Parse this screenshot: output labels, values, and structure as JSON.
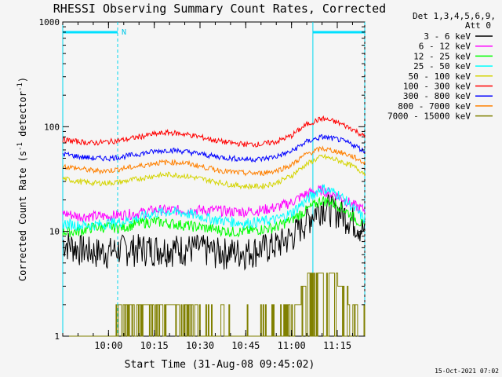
{
  "chart_data": {
    "type": "line",
    "title": "RHESSI Observing Summary Count Rates, Corrected",
    "xlabel": "Start Time (31-Aug-08 09:45:02)",
    "ylabel_main": "Corrected Count Rate (s",
    "ylabel_sup1": "-1",
    "ylabel_mid": " detector",
    "ylabel_sup2": "-1",
    "ylabel_end": ")",
    "x_unit": "minutes after 09:45:02",
    "x_range": [
      0,
      99
    ],
    "y_scale": "log",
    "ylim": [
      1,
      1000
    ],
    "x_ticks": [
      {
        "label": "10:00",
        "value": 15
      },
      {
        "label": "10:15",
        "value": 30
      },
      {
        "label": "10:30",
        "value": 45
      },
      {
        "label": "10:45",
        "value": 60
      },
      {
        "label": "11:00",
        "value": 75
      },
      {
        "label": "11:15",
        "value": 90
      }
    ],
    "y_ticks": [
      {
        "label": "1",
        "value": 1
      },
      {
        "label": "10",
        "value": 10
      },
      {
        "label": "100",
        "value": 100
      },
      {
        "label": "1000",
        "value": 1000
      }
    ],
    "legend_header": [
      "Det 1,3,4,5,6,9,",
      "Att 0"
    ],
    "legend_position": "right",
    "series": [
      {
        "name": "3 - 6 keV",
        "color": "#000000",
        "x": [
          0,
          5,
          10,
          15,
          20,
          25,
          30,
          35,
          40,
          45,
          50,
          55,
          60,
          65,
          70,
          75,
          80,
          85,
          90,
          95,
          99
        ],
        "y": [
          8,
          7,
          6.5,
          6.5,
          7,
          7,
          7,
          7,
          7,
          7,
          6.5,
          6.5,
          6.5,
          7,
          7.5,
          9,
          13,
          18,
          16,
          13,
          10
        ]
      },
      {
        "name": "6 - 12 keV",
        "color": "#ff00ff",
        "x": [
          0,
          5,
          10,
          15,
          20,
          25,
          30,
          35,
          40,
          45,
          50,
          55,
          60,
          65,
          70,
          75,
          80,
          85,
          90,
          95,
          99
        ],
        "y": [
          15,
          14,
          14,
          14,
          14.5,
          15,
          16,
          16,
          16,
          16,
          16,
          15.5,
          15.5,
          16,
          17,
          19,
          23,
          25,
          22,
          18,
          16
        ]
      },
      {
        "name": "12 - 25 keV",
        "color": "#00ff00",
        "x": [
          0,
          5,
          10,
          15,
          20,
          25,
          30,
          35,
          40,
          45,
          50,
          55,
          60,
          65,
          70,
          75,
          80,
          85,
          90,
          95,
          99
        ],
        "y": [
          10,
          10,
          11,
          11,
          11,
          12,
          12.5,
          12,
          11.5,
          11,
          10.5,
          10,
          10,
          10.5,
          11,
          13,
          16,
          20,
          18,
          14,
          11
        ]
      },
      {
        "name": "25 - 50 keV",
        "color": "#00ffff",
        "x": [
          0,
          5,
          10,
          15,
          20,
          25,
          30,
          35,
          40,
          45,
          50,
          55,
          60,
          65,
          70,
          75,
          80,
          85,
          90,
          95,
          99
        ],
        "y": [
          12,
          11.5,
          11.5,
          12,
          12.5,
          13.5,
          15,
          15.5,
          15,
          14,
          13,
          12.5,
          12,
          12.5,
          13,
          15,
          20,
          26,
          23,
          17,
          13
        ]
      },
      {
        "name": "50 - 100 keV",
        "color": "#d4d400",
        "x": [
          0,
          5,
          10,
          15,
          20,
          25,
          30,
          35,
          40,
          45,
          50,
          55,
          60,
          65,
          70,
          75,
          80,
          85,
          90,
          95,
          99
        ],
        "y": [
          32,
          30,
          29,
          29,
          30,
          32,
          34,
          35,
          34,
          32,
          30,
          28,
          27,
          27,
          29,
          34,
          44,
          52,
          48,
          42,
          36
        ]
      },
      {
        "name": "100 - 300 keV",
        "color": "#ff0000",
        "x": [
          0,
          5,
          10,
          15,
          20,
          25,
          30,
          35,
          40,
          45,
          50,
          55,
          60,
          65,
          70,
          75,
          80,
          85,
          90,
          95,
          99
        ],
        "y": [
          75,
          72,
          70,
          72,
          75,
          80,
          85,
          88,
          85,
          80,
          74,
          70,
          68,
          68,
          72,
          82,
          105,
          120,
          110,
          95,
          80
        ]
      },
      {
        "name": "300 - 800 keV",
        "color": "#0000ff",
        "x": [
          0,
          5,
          10,
          15,
          20,
          25,
          30,
          35,
          40,
          45,
          50,
          55,
          60,
          65,
          70,
          75,
          80,
          85,
          90,
          95,
          99
        ],
        "y": [
          55,
          52,
          50,
          50,
          52,
          55,
          58,
          60,
          58,
          55,
          52,
          50,
          49,
          49,
          52,
          58,
          72,
          80,
          76,
          68,
          58
        ]
      },
      {
        "name": "800 - 7000 keV",
        "color": "#ff8000",
        "x": [
          0,
          5,
          10,
          15,
          20,
          25,
          30,
          35,
          40,
          45,
          50,
          55,
          60,
          65,
          70,
          75,
          80,
          85,
          90,
          95,
          99
        ],
        "y": [
          42,
          40,
          38,
          38,
          40,
          42,
          45,
          46,
          45,
          42,
          39,
          37,
          36,
          36,
          38,
          43,
          55,
          62,
          58,
          52,
          45
        ]
      },
      {
        "name": "7000 - 15000 keV",
        "color": "#808000",
        "x": [
          0,
          15,
          18,
          20,
          25,
          30,
          35,
          40,
          42,
          45,
          50,
          55,
          60,
          65,
          70,
          75,
          78,
          80,
          82,
          85,
          88,
          90,
          92,
          95,
          98,
          99
        ],
        "y": [
          1,
          1,
          1.5,
          2,
          2,
          2,
          2,
          2,
          1.5,
          1.5,
          1,
          1,
          1,
          1,
          1,
          1.5,
          2.5,
          3.5,
          4,
          4.5,
          4,
          3.5,
          3,
          2,
          1,
          1
        ]
      }
    ],
    "attenuator_bars": [
      {
        "x_start": 0,
        "x_end": 18
      },
      {
        "x_start": 82,
        "x_end": 99
      }
    ],
    "night_mark": "N",
    "footer_timestamp": "15-Oct-2021 07:02"
  }
}
